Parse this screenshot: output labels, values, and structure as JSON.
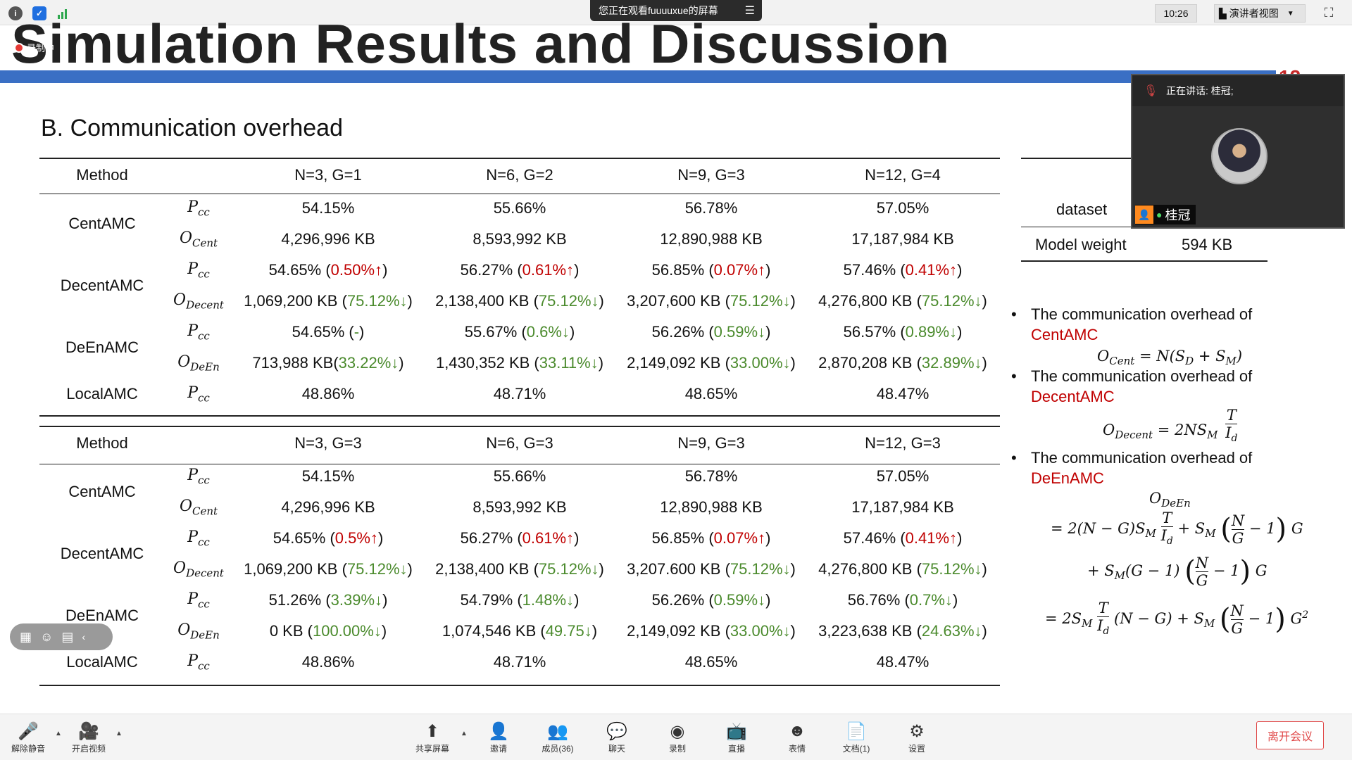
{
  "topbar": {
    "share_banner": "您正在观看fuuuuxue的屏幕",
    "clock": "10:26",
    "view_mode": "演讲者视图"
  },
  "slide": {
    "title": "Simulation Results and Discussion",
    "recording": "录制中",
    "page_number": "12",
    "section": "B. Communication overhead",
    "table1": {
      "header": [
        "Method",
        "N=3, G=1",
        "N=6, G=2",
        "N=9, G=3",
        "N=12, G=4"
      ],
      "methods": {
        "cent": "CentAMC",
        "decent": "DecentAMC",
        "deen": "DeEnAMC",
        "local": "LocalAMC"
      },
      "rows": [
        {
          "sym": "P",
          "sub": "cc",
          "vals": [
            [
              "54.15%",
              ""
            ],
            [
              "55.66%",
              ""
            ],
            [
              "56.78%",
              ""
            ],
            [
              "57.05%",
              ""
            ]
          ]
        },
        {
          "sym": "O",
          "sub": "Cent",
          "vals": [
            [
              "4,296,996 KB",
              ""
            ],
            [
              "8,593,992 KB",
              ""
            ],
            [
              "12,890,988 KB",
              ""
            ],
            [
              "17,187,984 KB",
              ""
            ]
          ]
        },
        {
          "sym": "P",
          "sub": "cc",
          "vals": [
            [
              "54.65% (",
              "0.50%↑",
              ")"
            ],
            [
              "56.27% (",
              "0.61%↑",
              ")"
            ],
            [
              "56.85% (",
              "0.07%↑",
              ")"
            ],
            [
              "57.46% (",
              "0.41%↑",
              ")"
            ]
          ]
        },
        {
          "sym": "O",
          "sub": "Decent",
          "vals": [
            [
              "1,069,200 KB (",
              "75.12%↓",
              ")"
            ],
            [
              "2,138,400 KB (",
              "75.12%↓",
              ")"
            ],
            [
              "3,207,600 KB (",
              "75.12%↓",
              ")"
            ],
            [
              "4,276,800 KB (",
              "75.12%↓",
              ")"
            ]
          ]
        },
        {
          "sym": "P",
          "sub": "cc",
          "vals": [
            [
              "54.65% (",
              "-",
              ")"
            ],
            [
              "55.67% (",
              "0.6%↓",
              ")"
            ],
            [
              "56.26% (",
              "0.59%↓",
              ")"
            ],
            [
              "56.57% (",
              "0.89%↓",
              ")"
            ]
          ]
        },
        {
          "sym": "O",
          "sub": "DeEn",
          "vals": [
            [
              "713,988 KB(",
              "33.22%↓",
              ")"
            ],
            [
              "1,430,352 KB (",
              "33.11%↓",
              ")"
            ],
            [
              "2,149,092 KB (",
              "33.00%↓",
              ")"
            ],
            [
              "2,870,208 KB (",
              "32.89%↓",
              ")"
            ]
          ]
        },
        {
          "sym": "P",
          "sub": "cc",
          "vals": [
            [
              "48.86%",
              ""
            ],
            [
              "48.71%",
              ""
            ],
            [
              "48.65%",
              ""
            ],
            [
              "48.47%",
              ""
            ]
          ]
        }
      ]
    },
    "table2": {
      "header": [
        "Method",
        "N=3, G=3",
        "N=6, G=3",
        "N=9, G=3",
        "N=12, G=3"
      ],
      "methods": {
        "cent": "CentAMC",
        "decent": "DecentAMC",
        "deen": "DeEnAMC",
        "local": "LocalAMC"
      },
      "rows": [
        {
          "sym": "P",
          "sub": "cc",
          "vals": [
            [
              "54.15%",
              ""
            ],
            [
              "55.66%",
              ""
            ],
            [
              "56.78%",
              ""
            ],
            [
              "57.05%",
              ""
            ]
          ]
        },
        {
          "sym": "O",
          "sub": "Cent",
          "vals": [
            [
              "4,296,996 KB",
              ""
            ],
            [
              "8,593,992 KB",
              ""
            ],
            [
              "12,890,988 KB",
              ""
            ],
            [
              "17,187,984 KB",
              ""
            ]
          ]
        },
        {
          "sym": "P",
          "sub": "cc",
          "vals": [
            [
              "54.65% (",
              "0.5%↑",
              ")"
            ],
            [
              "56.27% (",
              "0.61%↑",
              ")"
            ],
            [
              "56.85% (",
              "0.07%↑",
              ")"
            ],
            [
              "57.46% (",
              "0.41%↑",
              ")"
            ]
          ]
        },
        {
          "sym": "O",
          "sub": "Decent",
          "vals": [
            [
              "1,069,200 KB (",
              "75.12%↓",
              ")"
            ],
            [
              "2,138,400 KB (",
              "75.12%↓",
              ")"
            ],
            [
              "3,207.600 KB (",
              "75.12%↓",
              ")"
            ],
            [
              "4,276,800 KB (",
              "75.12%↓",
              ")"
            ]
          ]
        },
        {
          "sym": "P",
          "sub": "cc",
          "vals": [
            [
              "51.26% (",
              "3.39%↓",
              ")"
            ],
            [
              "54.79% (",
              "1.48%↓",
              ")"
            ],
            [
              "56.26% (",
              "0.59%↓",
              ")"
            ],
            [
              "56.76% (",
              "0.7%↓",
              ")"
            ]
          ]
        },
        {
          "sym": "O",
          "sub": "DeEn",
          "vals": [
            [
              "0 KB (",
              "100.00%↓",
              ")"
            ],
            [
              "1,074,546 KB (",
              "49.75↓",
              ")"
            ],
            [
              "2,149,092 KB (",
              "33.00%↓",
              ")"
            ],
            [
              "3,223,638 KB (",
              "24.63%↓",
              ")"
            ]
          ]
        },
        {
          "sym": "P",
          "sub": "cc",
          "vals": [
            [
              "48.86%",
              ""
            ],
            [
              "48.71%",
              ""
            ],
            [
              "48.65%",
              ""
            ],
            [
              "48.47%",
              ""
            ]
          ]
        }
      ]
    },
    "side": {
      "dataset_label": "dataset",
      "model_weight_label": "Model weight",
      "model_weight_value": "594 KB"
    },
    "bullets": {
      "b1_text": "The communication overhead  of",
      "b1_method": "CentAMC",
      "b2_text": "The communication overhead of",
      "b2_method": "DecentAMC",
      "b3_text": "The  communication  overhead of",
      "b3_method": "DeEnAMC"
    }
  },
  "video": {
    "speaking": "正在讲话: 桂冠;",
    "name": "桂冠"
  },
  "bottombar": {
    "unmute": "解除静音",
    "start_video": "开启视频",
    "share": "共享屏幕",
    "invite": "邀请",
    "members": "成员(36)",
    "chat": "聊天",
    "record": "录制",
    "live": "直播",
    "reaction": "表情",
    "docs": "文档(1)",
    "settings": "设置",
    "leave": "离开会议"
  },
  "colors": {
    "accent_blue": "#3a6fc4",
    "increase_red": "#c00000",
    "decrease_green": "#4a8a2c"
  }
}
